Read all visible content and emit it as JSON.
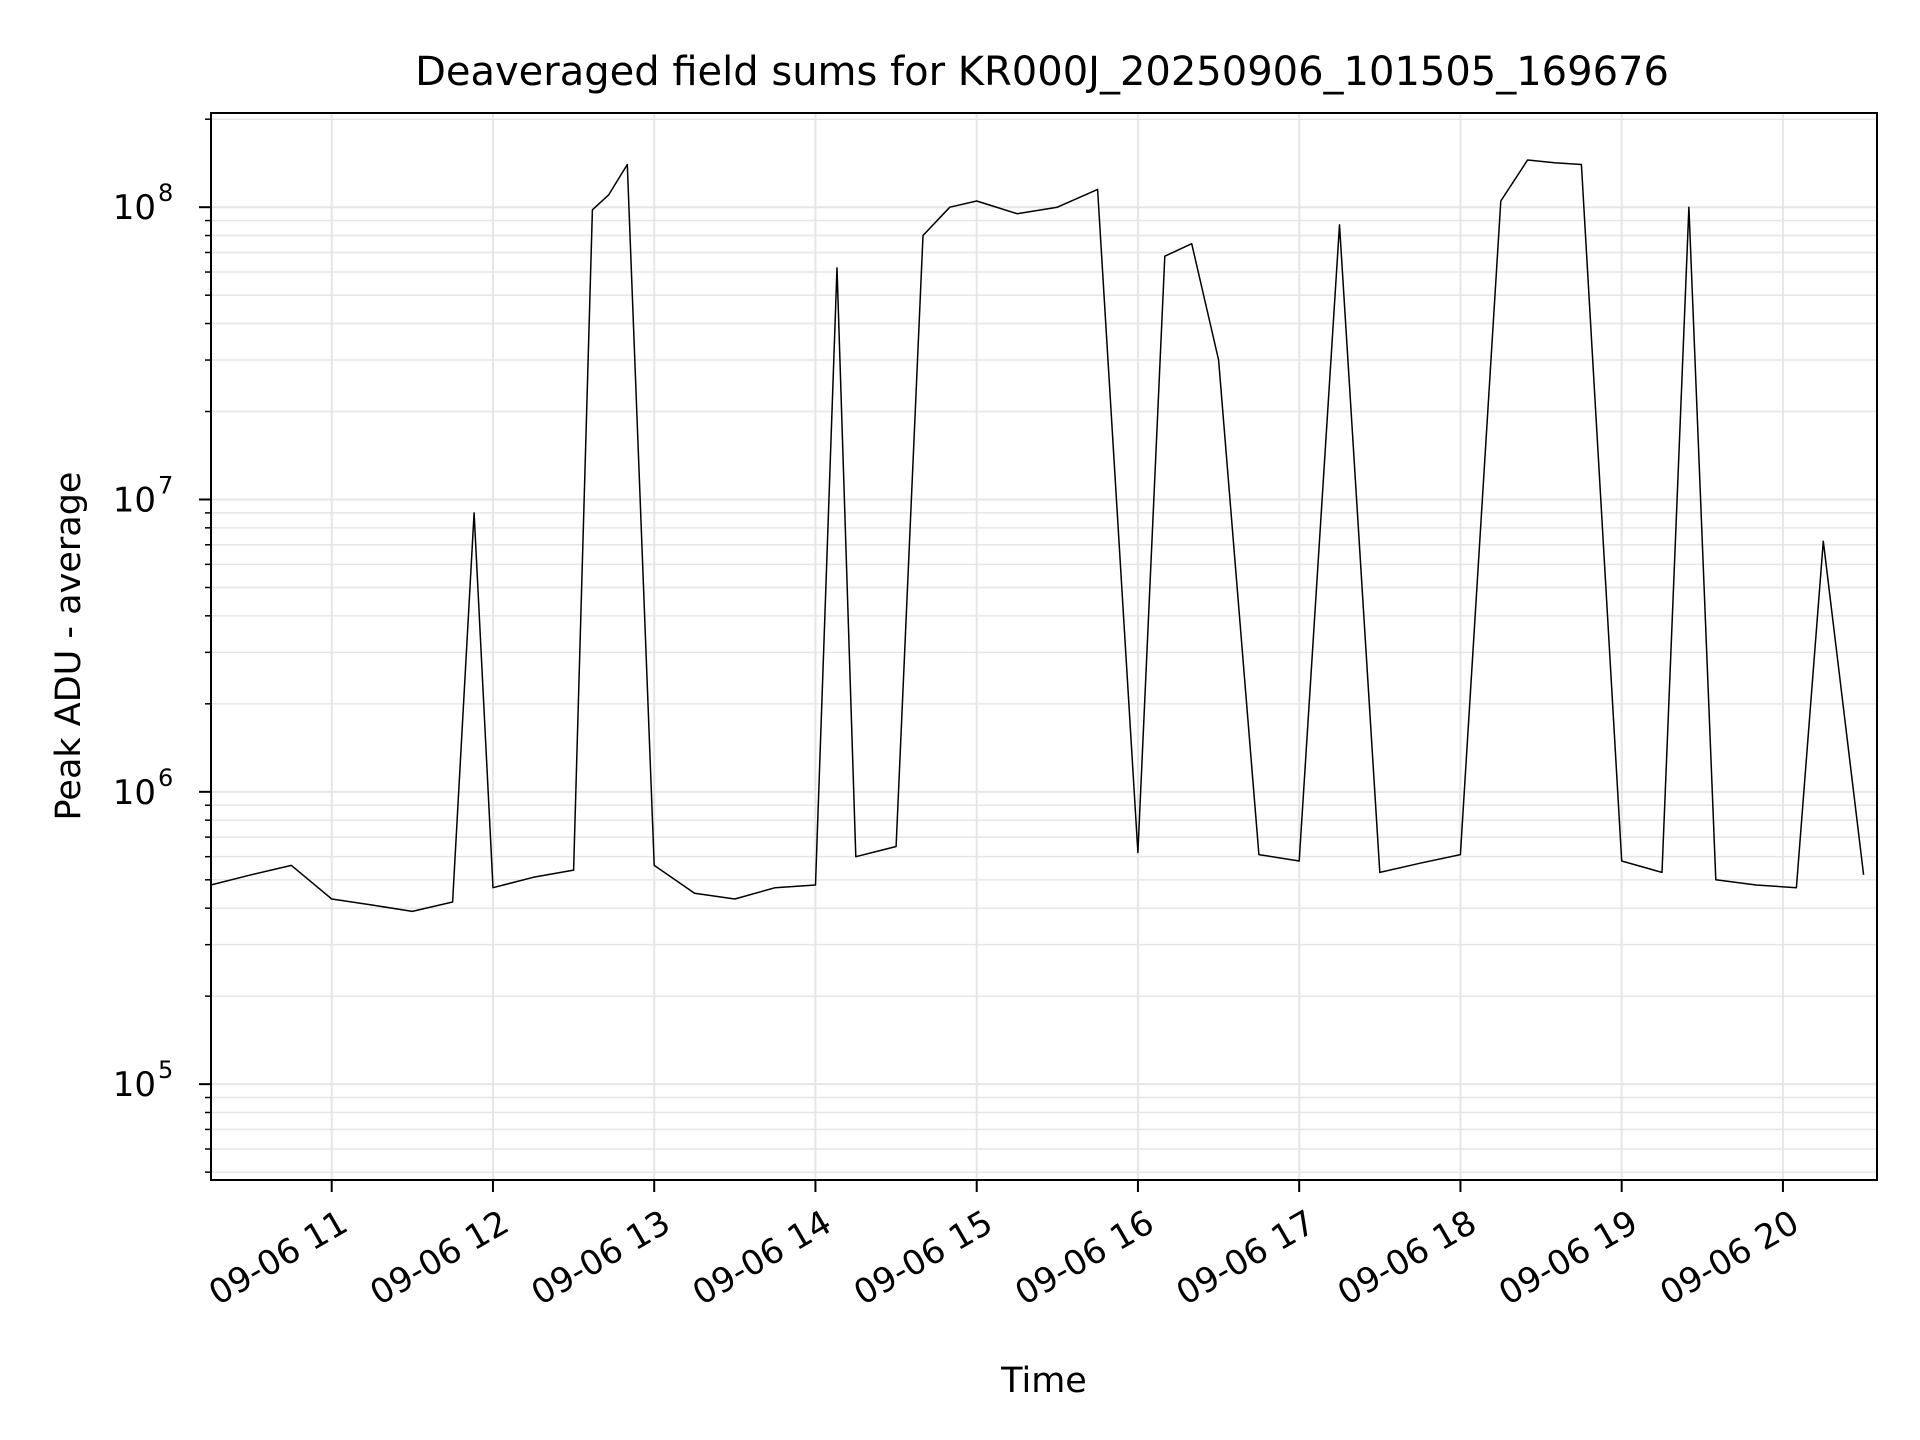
{
  "chart_data": {
    "type": "line",
    "title": "Deaveraged field sums for KR000J_20250906_101505_169676",
    "xlabel": "Time",
    "ylabel": "Peak ADU - average",
    "yscale": "log",
    "ylim": [
      47000,
      210000000
    ],
    "xlim": [
      "2025-09-06T10:15:05",
      "2025-09-06T20:35:00"
    ],
    "grid": true,
    "line_color": "#000000",
    "x_tick_labels": [
      "09-06 11",
      "09-06 12",
      "09-06 13",
      "09-06 14",
      "09-06 15",
      "09-06 16",
      "09-06 17",
      "09-06 18",
      "09-06 19",
      "09-06 20"
    ],
    "x_tick_values": [
      "2025-09-06T11:00",
      "2025-09-06T12:00",
      "2025-09-06T13:00",
      "2025-09-06T14:00",
      "2025-09-06T15:00",
      "2025-09-06T16:00",
      "2025-09-06T17:00",
      "2025-09-06T18:00",
      "2025-09-06T19:00",
      "2025-09-06T20:00"
    ],
    "y_ticks": [
      {
        "value": 100000,
        "base": "10",
        "exp": "5"
      },
      {
        "value": 1000000,
        "base": "10",
        "exp": "6"
      },
      {
        "value": 10000000,
        "base": "10",
        "exp": "7"
      },
      {
        "value": 100000000,
        "base": "10",
        "exp": "8"
      }
    ],
    "series": [
      {
        "x": [
          "2025-09-06T10:15",
          "2025-09-06T10:30",
          "2025-09-06T10:45",
          "2025-09-06T11:00",
          "2025-09-06T11:15",
          "2025-09-06T11:30",
          "2025-09-06T11:45",
          "2025-09-06T11:53",
          "2025-09-06T12:00",
          "2025-09-06T12:15",
          "2025-09-06T12:30",
          "2025-09-06T12:37",
          "2025-09-06T12:43",
          "2025-09-06T12:50",
          "2025-09-06T13:00",
          "2025-09-06T13:15",
          "2025-09-06T13:30",
          "2025-09-06T13:45",
          "2025-09-06T14:00",
          "2025-09-06T14:08",
          "2025-09-06T14:15",
          "2025-09-06T14:30",
          "2025-09-06T14:40",
          "2025-09-06T14:50",
          "2025-09-06T15:00",
          "2025-09-06T15:15",
          "2025-09-06T15:30",
          "2025-09-06T15:45",
          "2025-09-06T16:00",
          "2025-09-06T16:10",
          "2025-09-06T16:20",
          "2025-09-06T16:30",
          "2025-09-06T16:45",
          "2025-09-06T17:00",
          "2025-09-06T17:15",
          "2025-09-06T17:30",
          "2025-09-06T17:45",
          "2025-09-06T18:00",
          "2025-09-06T18:15",
          "2025-09-06T18:25",
          "2025-09-06T18:35",
          "2025-09-06T18:45",
          "2025-09-06T19:00",
          "2025-09-06T19:15",
          "2025-09-06T19:25",
          "2025-09-06T19:35",
          "2025-09-06T19:50",
          "2025-09-06T20:05",
          "2025-09-06T20:15",
          "2025-09-06T20:30"
        ],
        "y": [
          480000,
          520000,
          560000,
          430000,
          410000,
          390000,
          420000,
          9000000,
          470000,
          510000,
          540000,
          98000000,
          110000000,
          140000000,
          560000,
          450000,
          430000,
          470000,
          480000,
          62000000,
          600000,
          650000,
          80000000,
          100000000,
          105000000,
          95000000,
          100000000,
          115000000,
          620000,
          68000000,
          75000000,
          30000000,
          610000,
          580000,
          87000000,
          530000,
          570000,
          610000,
          105000000,
          145000000,
          142000000,
          140000000,
          580000,
          530000,
          100000000,
          500000,
          480000,
          470000,
          7200000,
          520000
        ]
      }
    ]
  }
}
